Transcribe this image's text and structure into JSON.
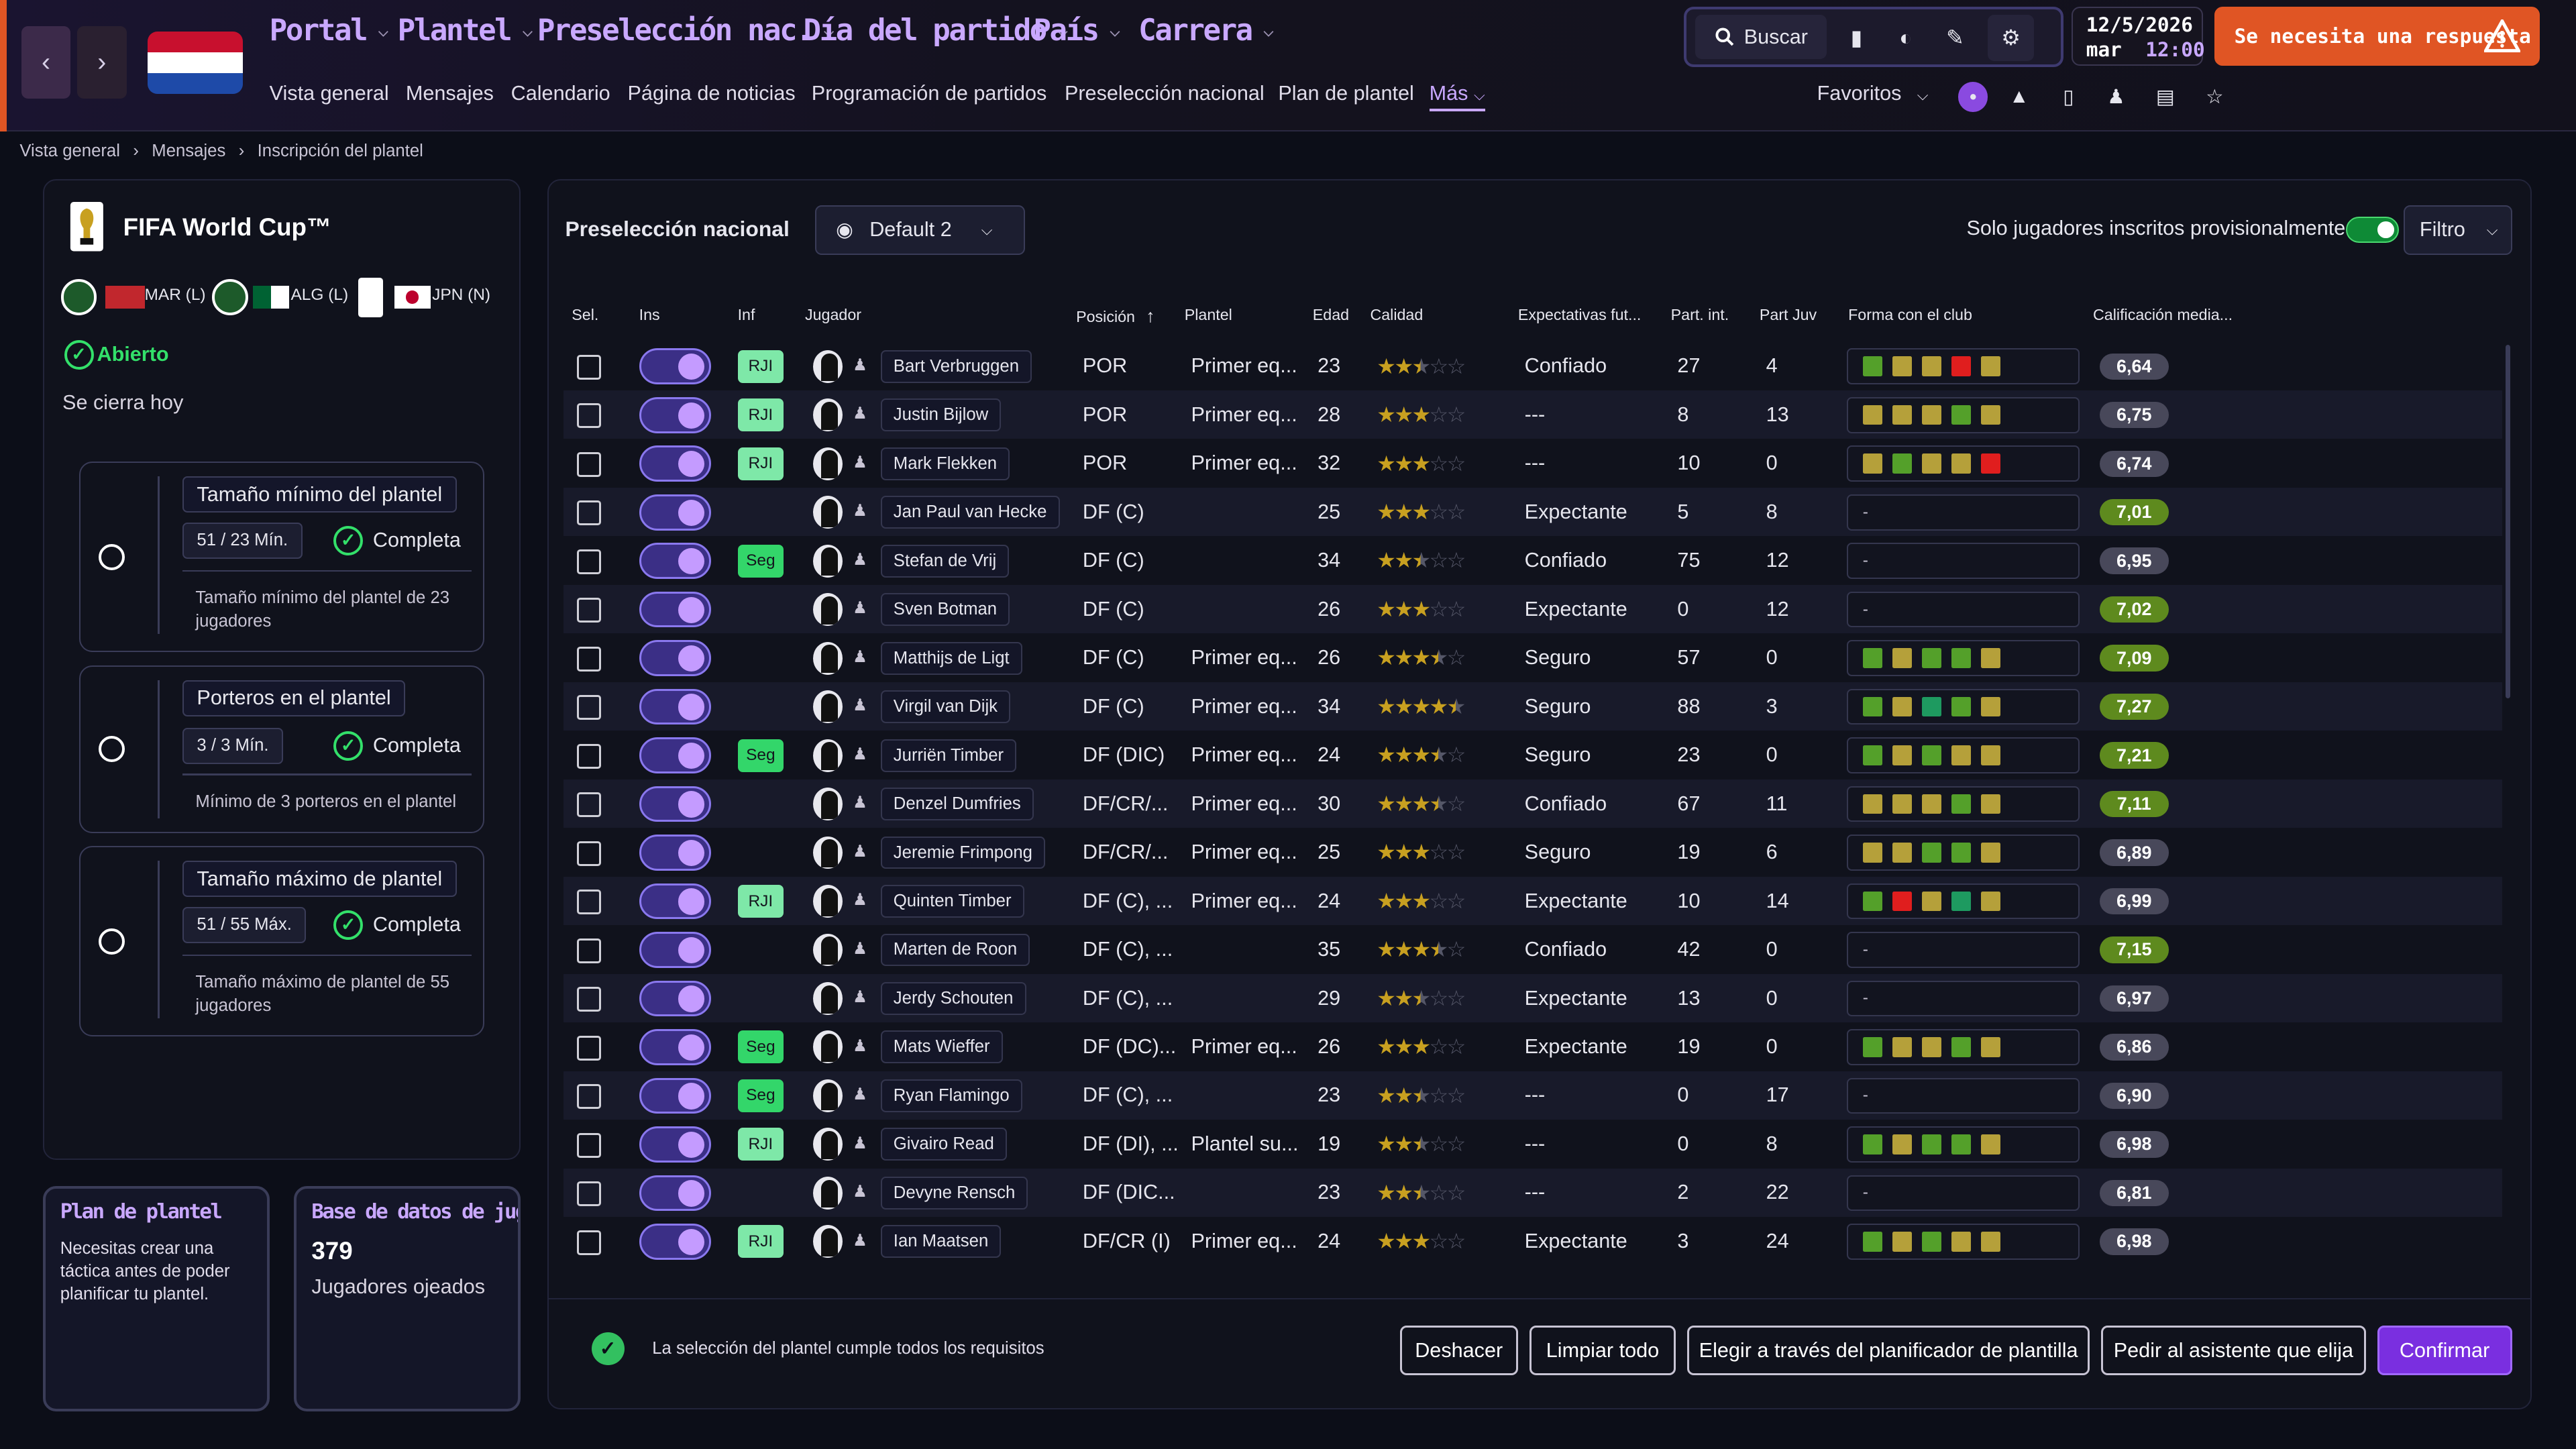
{
  "colors": {
    "accent": "#c9a8ff",
    "respond": "#e05524",
    "ok": "#33e06a",
    "confirm": "#7a2fe0"
  },
  "topnav": {
    "back_icon": "chevron-left-icon",
    "forward_icon": "chevron-right-icon",
    "menus": [
      {
        "label": "Portal"
      },
      {
        "label": "Plantel"
      },
      {
        "label": "Preselección nac."
      },
      {
        "label": "Día del partido"
      },
      {
        "label": "País"
      },
      {
        "label": "Carrera"
      }
    ],
    "submenu": [
      "Vista general",
      "Mensajes",
      "Calendario",
      "Página de noticias",
      "Programación de partidos",
      "Preselección nacional",
      "Plan de plantel",
      "Más"
    ],
    "search_label": "Buscar",
    "date": "12/5/2026",
    "weekday": "mar",
    "time": "12:00",
    "respond_label": "Se necesita una respuesta",
    "favorites_label": "Favoritos"
  },
  "breadcrumb": [
    "Vista general",
    "Mensajes",
    "Inscripción del plantel"
  ],
  "competition": {
    "name": "FIFA World Cup™",
    "groups": [
      {
        "code": "MAR (L)"
      },
      {
        "code": "ALG (L)"
      },
      {
        "code": "JPN (N)"
      }
    ],
    "status": "Abierto",
    "closes": "Se cierra hoy"
  },
  "requirements": [
    {
      "title": "Tamaño mínimo del plantel",
      "pill": "51 / 23 Mín.",
      "status": "Completa",
      "desc": "Tamaño mínimo del plantel de 23 jugadores"
    },
    {
      "title": "Porteros en el plantel",
      "pill": "3 / 3 Mín.",
      "status": "Completa",
      "desc": "Mínimo de 3 porteros en el plantel"
    },
    {
      "title": "Tamaño máximo de plantel",
      "pill": "51 / 55 Máx.",
      "status": "Completa",
      "desc": "Tamaño máximo de plantel de 55 jugadores"
    }
  ],
  "cards": {
    "plan": {
      "title": "Plan de plantel",
      "text": "Necesitas crear una táctica antes de poder planificar tu plantel."
    },
    "db": {
      "title": "Base de datos de jugad",
      "count": "379",
      "text": "Jugadores ojeados"
    }
  },
  "main": {
    "title": "Preselección nacional",
    "view": "Default 2",
    "only_label": "Solo jugadores inscritos provisionalmente",
    "filter_label": "Filtro",
    "columns": [
      "Sel.",
      "Ins",
      "Inf",
      "Jugador",
      "Posición",
      "Plantel",
      "Edad",
      "Calidad",
      "Expectativas fut...",
      "Part. int.",
      "Part Juv",
      "Forma con el club",
      "Calificación media..."
    ]
  },
  "players": [
    {
      "inf": "RJI",
      "name": "Bart Verbruggen",
      "pos": "POR",
      "squad": "Primer eq...",
      "age": "23",
      "stars": 2.5,
      "exp": "Confiado",
      "caps": "27",
      "youth": "4",
      "form": [
        "g",
        "y",
        "y",
        "r",
        "y"
      ],
      "rating": "6,64"
    },
    {
      "inf": "RJI",
      "name": "Justin Bijlow",
      "pos": "POR",
      "squad": "Primer eq...",
      "age": "28",
      "stars": 3,
      "exp": "---",
      "caps": "8",
      "youth": "13",
      "form": [
        "y",
        "y",
        "y",
        "g",
        "y"
      ],
      "rating": "6,75"
    },
    {
      "inf": "RJI",
      "name": "Mark Flekken",
      "pos": "POR",
      "squad": "Primer eq...",
      "age": "32",
      "stars": 3,
      "exp": "---",
      "caps": "10",
      "youth": "0",
      "form": [
        "y",
        "g",
        "y",
        "y",
        "r"
      ],
      "rating": "6,74"
    },
    {
      "inf": "",
      "name": "Jan Paul van Hecke",
      "pos": "DF (C)",
      "squad": "",
      "age": "25",
      "stars": 3,
      "exp": "Expectante",
      "caps": "5",
      "youth": "8",
      "form": [],
      "rating": "7,01"
    },
    {
      "inf": "Seg",
      "name": "Stefan de Vrij",
      "pos": "DF (C)",
      "squad": "",
      "age": "34",
      "stars": 2.5,
      "exp": "Confiado",
      "caps": "75",
      "youth": "12",
      "form": [],
      "rating": "6,95"
    },
    {
      "inf": "",
      "name": "Sven Botman",
      "pos": "DF (C)",
      "squad": "",
      "age": "26",
      "stars": 3,
      "exp": "Expectante",
      "caps": "0",
      "youth": "12",
      "form": [],
      "rating": "7,02"
    },
    {
      "inf": "",
      "name": "Matthijs de Ligt",
      "pos": "DF (C)",
      "squad": "Primer eq...",
      "age": "26",
      "stars": 3.5,
      "exp": "Seguro",
      "caps": "57",
      "youth": "0",
      "form": [
        "g",
        "y",
        "g",
        "g",
        "y"
      ],
      "rating": "7,09"
    },
    {
      "inf": "",
      "name": "Virgil van Dijk",
      "pos": "DF (C)",
      "squad": "Primer eq...",
      "age": "34",
      "stars": 4.5,
      "exp": "Seguro",
      "caps": "88",
      "youth": "3",
      "form": [
        "g",
        "y",
        "t",
        "g",
        "y"
      ],
      "rating": "7,27"
    },
    {
      "inf": "Seg",
      "name": "Jurriën Timber",
      "pos": "DF (DIC)",
      "squad": "Primer eq...",
      "age": "24",
      "stars": 3.5,
      "exp": "Seguro",
      "caps": "23",
      "youth": "0",
      "form": [
        "g",
        "y",
        "g",
        "y",
        "y"
      ],
      "rating": "7,21"
    },
    {
      "inf": "",
      "name": "Denzel Dumfries",
      "pos": "DF/CR/...",
      "squad": "Primer eq...",
      "age": "30",
      "stars": 3.5,
      "exp": "Confiado",
      "caps": "67",
      "youth": "11",
      "form": [
        "y",
        "y",
        "y",
        "g",
        "y"
      ],
      "rating": "7,11"
    },
    {
      "inf": "",
      "name": "Jeremie Frimpong",
      "pos": "DF/CR/...",
      "squad": "Primer eq...",
      "age": "25",
      "stars": 3,
      "exp": "Seguro",
      "caps": "19",
      "youth": "6",
      "form": [
        "y",
        "y",
        "g",
        "g",
        "y"
      ],
      "rating": "6,89"
    },
    {
      "inf": "RJI",
      "name": "Quinten Timber",
      "pos": "DF (C), ...",
      "squad": "Primer eq...",
      "age": "24",
      "stars": 3,
      "exp": "Expectante",
      "caps": "10",
      "youth": "14",
      "form": [
        "g",
        "r",
        "y",
        "t",
        "y"
      ],
      "rating": "6,99"
    },
    {
      "inf": "",
      "name": "Marten de Roon",
      "pos": "DF (C), ...",
      "squad": "",
      "age": "35",
      "stars": 3.5,
      "exp": "Confiado",
      "caps": "42",
      "youth": "0",
      "form": [],
      "rating": "7,15"
    },
    {
      "inf": "",
      "name": "Jerdy Schouten",
      "pos": "DF (C), ...",
      "squad": "",
      "age": "29",
      "stars": 2.5,
      "exp": "Expectante",
      "caps": "13",
      "youth": "0",
      "form": [],
      "rating": "6,97"
    },
    {
      "inf": "Seg",
      "name": "Mats Wieffer",
      "pos": "DF (DC)...",
      "squad": "Primer eq...",
      "age": "26",
      "stars": 3,
      "exp": "Expectante",
      "caps": "19",
      "youth": "0",
      "form": [
        "g",
        "y",
        "y",
        "g",
        "y"
      ],
      "rating": "6,86"
    },
    {
      "inf": "Seg",
      "name": "Ryan Flamingo",
      "pos": "DF (C), ...",
      "squad": "",
      "age": "23",
      "stars": 2.5,
      "exp": "---",
      "caps": "0",
      "youth": "17",
      "form": [],
      "rating": "6,90"
    },
    {
      "inf": "RJI",
      "name": "Givairo Read",
      "pos": "DF (DI), ...",
      "squad": "Plantel su...",
      "age": "19",
      "stars": 2.5,
      "exp": "---",
      "caps": "0",
      "youth": "8",
      "form": [
        "g",
        "y",
        "g",
        "g",
        "y"
      ],
      "rating": "6,98"
    },
    {
      "inf": "",
      "name": "Devyne Rensch",
      "pos": "DF (DIC...",
      "squad": "",
      "age": "23",
      "stars": 2.5,
      "exp": "---",
      "caps": "2",
      "youth": "22",
      "form": [],
      "rating": "6,81"
    },
    {
      "inf": "RJI",
      "name": "Ian Maatsen",
      "pos": "DF/CR (I)",
      "squad": "Primer eq...",
      "age": "24",
      "stars": 3,
      "exp": "Expectante",
      "caps": "3",
      "youth": "24",
      "form": [
        "g",
        "y",
        "g",
        "y",
        "y"
      ],
      "rating": "6,98"
    }
  ],
  "footer": {
    "status": "La selección del plantel cumple todos los requisitos",
    "buttons": [
      "Deshacer",
      "Limpiar todo",
      "Elegir a través del planificador de plantilla",
      "Pedir al asistente que elija",
      "Confirmar"
    ]
  }
}
